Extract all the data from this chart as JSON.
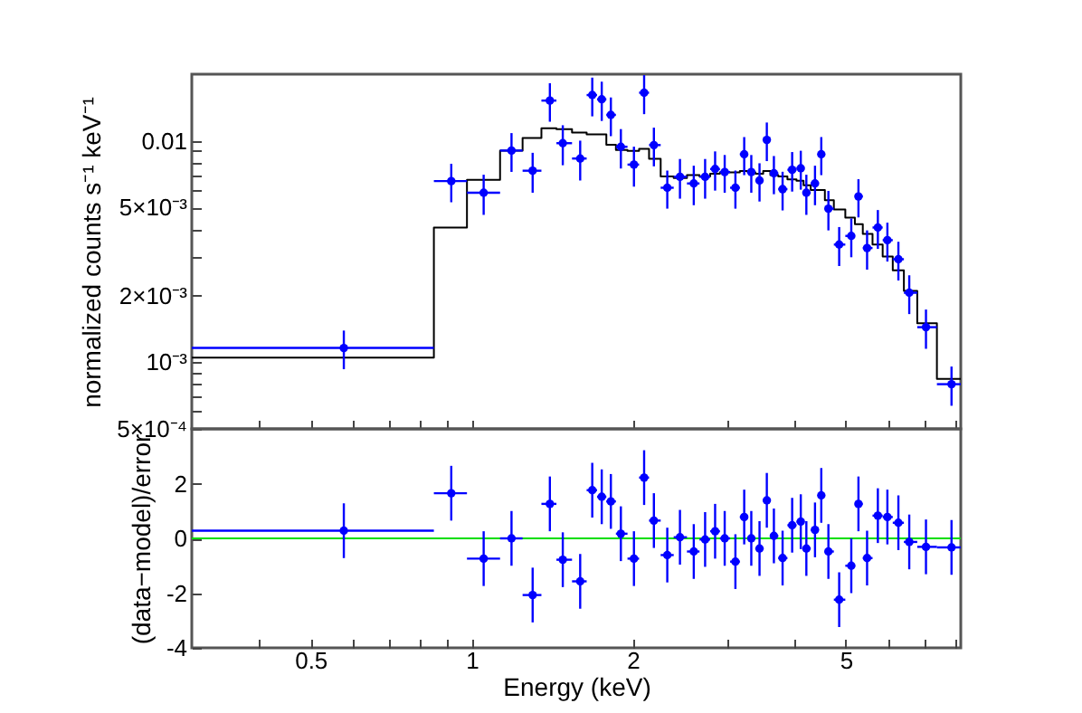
{
  "chart_data": [
    {
      "type": "scatter",
      "ylabel": "normalized counts s⁻¹ keV⁻¹",
      "log": "xy",
      "xlim": [
        0.3,
        8.2
      ],
      "ylim": [
        0.0005,
        0.02
      ],
      "xticks": [
        {
          "value": 0.4,
          "label": null
        },
        0.5,
        {
          "value": 0.6,
          "label": null
        },
        {
          "value": 0.7,
          "label": null
        },
        {
          "value": 0.8,
          "label": null
        },
        {
          "value": 0.9,
          "label": null
        },
        1,
        2,
        {
          "value": 3,
          "label": null
        },
        {
          "value": 4,
          "label": null
        },
        5,
        {
          "value": 6,
          "label": null
        },
        {
          "value": 7,
          "label": null
        },
        {
          "value": 8,
          "label": null
        }
      ],
      "yticks": [
        {
          "value": 0.0005,
          "label": "5×10⁻⁴"
        },
        {
          "value": 0.0006,
          "label": null
        },
        {
          "value": 0.0007,
          "label": null
        },
        {
          "value": 0.0008,
          "label": null
        },
        {
          "value": 0.0009,
          "label": null
        },
        {
          "value": 0.001,
          "label": "10⁻³"
        },
        {
          "value": 0.002,
          "label": "2×10⁻³"
        },
        {
          "value": 0.003,
          "label": null
        },
        {
          "value": 0.004,
          "label": null
        },
        {
          "value": 0.005,
          "label": "5×10⁻³"
        },
        {
          "value": 0.006,
          "label": null
        },
        {
          "value": 0.007,
          "label": null
        },
        {
          "value": 0.008,
          "label": null
        },
        {
          "value": 0.009,
          "label": null
        },
        0.01
      ],
      "tick_labels": "y",
      "series": [
        {
          "type": "step",
          "color": "#000000",
          "x": [
            0.3,
            0.85,
            0.98,
            1.13,
            1.245,
            1.35,
            1.44,
            1.54,
            1.64,
            1.715,
            1.785,
            1.86,
            1.955,
            2.055,
            2.145,
            2.255,
            2.385,
            2.525,
            2.665,
            2.79,
            2.91,
            3.04,
            3.17,
            3.28,
            3.39,
            3.505,
            3.615,
            3.74,
            3.89,
            4.045,
            4.17,
            4.3,
            4.44,
            4.57,
            4.75,
            4.99,
            5.2,
            5.38,
            5.61,
            5.86,
            6.12,
            6.42,
            6.8,
            7.4,
            8.2
          ],
          "values": [
            0.00105,
            0.00406,
            0.00666,
            0.00904,
            0.0103,
            0.0114,
            0.0113,
            0.0109,
            0.0107,
            0.0107,
            0.0096,
            0.0091,
            0.009,
            0.0092,
            0.0083,
            0.0069,
            0.0068,
            0.007,
            0.0069,
            0.0071,
            0.0072,
            0.0072,
            0.0073,
            0.0072,
            0.0071,
            0.0073,
            0.007,
            0.0069,
            0.0067,
            0.0066,
            0.0063,
            0.006,
            0.006,
            0.0054,
            0.0049,
            0.0045,
            0.0042,
            0.0038,
            0.0034,
            0.003,
            0.0026,
            0.0021,
            0.0015,
            0.00084,
            0.00084
          ]
        },
        {
          "color": "#0000ff",
          "marker": "circle",
          "x": [
            0.577,
            0.916,
            1.053,
            1.187,
            1.3,
            1.4,
            1.48,
            1.595,
            1.68,
            1.75,
            1.82,
            1.9,
            2.01,
            2.1,
            2.19,
            2.32,
            2.45,
            2.6,
            2.73,
            2.85,
            2.97,
            3.11,
            3.23,
            3.33,
            3.45,
            3.56,
            3.67,
            3.81,
            3.97,
            4.12,
            4.22,
            4.38,
            4.5,
            4.64,
            4.86,
            5.12,
            5.28,
            5.48,
            5.74,
            5.98,
            6.27,
            6.57,
            7.06,
            7.88
          ],
          "values": [
            0.00116,
            0.00658,
            0.00583,
            0.00904,
            0.00733,
            0.0152,
            0.00976,
            0.00832,
            0.0161,
            0.0154,
            0.0131,
            0.0094,
            0.00781,
            0.0165,
            0.00957,
            0.00614,
            0.00688,
            0.00642,
            0.00688,
            0.00746,
            0.00723,
            0.00614,
            0.0087,
            0.00723,
            0.00662,
            0.0101,
            0.00714,
            0.00605,
            0.0074,
            0.00752,
            0.00583,
            0.00642,
            0.0087,
            0.00494,
            0.0034,
            0.00372,
            0.00561,
            0.00328,
            0.00406,
            0.00356,
            0.00292,
            0.00206,
            0.00144,
            0.000796
          ],
          "errors": [
            0.00023,
            0.0013,
            0.0012,
            0.0018,
            0.0015,
            0.003,
            0.002,
            0.0017,
            0.0032,
            0.0031,
            0.0026,
            0.0019,
            0.0016,
            0.0033,
            0.0019,
            0.0012,
            0.0014,
            0.0013,
            0.0014,
            0.0015,
            0.0014,
            0.0012,
            0.0017,
            0.0014,
            0.0013,
            0.002,
            0.0014,
            0.0012,
            0.0015,
            0.0015,
            0.0012,
            0.0013,
            0.0017,
            0.001,
            0.00068,
            0.00074,
            0.0011,
            0.00066,
            0.00081,
            0.00071,
            0.00058,
            0.00041,
            0.00029,
            0.00016
          ],
          "xerrors": [
            [
              0.3,
              0.85
            ],
            [
              0.85,
              0.98
            ],
            [
              0.98,
              1.13
            ],
            [
              1.13,
              1.245
            ],
            [
              1.245,
              1.35
            ],
            [
              1.35,
              1.44
            ],
            [
              1.44,
              1.54
            ],
            [
              1.54,
              1.64
            ],
            [
              1.64,
              1.715
            ],
            [
              1.715,
              1.785
            ],
            [
              1.785,
              1.86
            ],
            [
              1.86,
              1.955
            ],
            [
              1.955,
              2.055
            ],
            [
              2.055,
              2.145
            ],
            [
              2.145,
              2.255
            ],
            [
              2.255,
              2.385
            ],
            [
              2.385,
              2.525
            ],
            [
              2.525,
              2.665
            ],
            [
              2.665,
              2.79
            ],
            [
              2.79,
              2.91
            ],
            [
              2.91,
              3.04
            ],
            [
              3.04,
              3.17
            ],
            [
              3.17,
              3.28
            ],
            [
              3.28,
              3.39
            ],
            [
              3.39,
              3.505
            ],
            [
              3.505,
              3.615
            ],
            [
              3.615,
              3.74
            ],
            [
              3.74,
              3.89
            ],
            [
              3.89,
              4.045
            ],
            [
              4.045,
              4.17
            ],
            [
              4.17,
              4.3
            ],
            [
              4.3,
              4.44
            ],
            [
              4.44,
              4.57
            ],
            [
              4.57,
              4.75
            ],
            [
              4.75,
              4.99
            ],
            [
              4.99,
              5.2
            ],
            [
              5.2,
              5.38
            ],
            [
              5.38,
              5.61
            ],
            [
              5.61,
              5.86
            ],
            [
              5.86,
              6.12
            ],
            [
              6.12,
              6.42
            ],
            [
              6.42,
              6.8
            ],
            [
              6.8,
              7.4
            ],
            [
              7.4,
              8.2
            ]
          ]
        }
      ]
    },
    {
      "type": "scatter",
      "xlabel": "Energy (keV)",
      "ylabel": "(data−model)/error",
      "log": "x",
      "xlim": [
        0.3,
        8.2
      ],
      "ylim": [
        -4,
        4
      ],
      "xticks": [
        {
          "value": 0.4,
          "label": null
        },
        0.5,
        {
          "value": 0.6,
          "label": null
        },
        {
          "value": 0.7,
          "label": null
        },
        {
          "value": 0.8,
          "label": null
        },
        {
          "value": 0.9,
          "label": null
        },
        1,
        2,
        {
          "value": 3,
          "label": null
        },
        {
          "value": 4,
          "label": null
        },
        5,
        {
          "value": 6,
          "label": null
        },
        {
          "value": 7,
          "label": null
        },
        {
          "value": 8,
          "label": null
        }
      ],
      "yticks": [
        -4,
        -2,
        0,
        2
      ],
      "marker": "circle",
      "ref_lines": [
        {
          "axis": "y",
          "value": 0,
          "color": "#00dd00"
        }
      ],
      "series": [
        {
          "color": "#0000ff",
          "x": [
            0.577,
            0.916,
            1.053,
            1.187,
            1.3,
            1.4,
            1.48,
            1.595,
            1.68,
            1.75,
            1.82,
            1.9,
            2.01,
            2.1,
            2.19,
            2.32,
            2.45,
            2.6,
            2.73,
            2.85,
            2.97,
            3.11,
            3.23,
            3.33,
            3.45,
            3.56,
            3.67,
            3.81,
            3.97,
            4.12,
            4.22,
            4.38,
            4.5,
            4.64,
            4.86,
            5.12,
            5.28,
            5.48,
            5.74,
            5.98,
            6.27,
            6.57,
            7.06,
            7.88
          ],
          "values": [
            0.28,
            1.65,
            -0.74,
            0,
            -2.07,
            1.26,
            -0.78,
            -1.57,
            1.76,
            1.52,
            1.35,
            0.17,
            -0.74,
            2.22,
            0.65,
            -0.61,
            0.04,
            -0.48,
            -0.04,
            0.26,
            0,
            -0.85,
            0.78,
            0,
            -0.37,
            1.39,
            0.09,
            -0.72,
            0.48,
            0.61,
            -0.37,
            0.31,
            1.57,
            -0.48,
            -2.24,
            -1,
            1.26,
            -0.72,
            0.83,
            0.78,
            0.57,
            -0.13,
            -0.31,
            -0.33
          ],
          "errors": [
            1,
            1,
            1,
            1,
            1,
            1,
            1,
            1,
            1,
            1,
            1,
            1,
            1,
            1,
            1,
            1,
            1,
            1,
            1,
            1,
            1,
            1,
            1,
            1,
            1,
            1,
            1,
            1,
            1,
            1,
            1,
            1,
            1,
            1,
            1,
            1,
            1,
            1,
            1,
            1,
            1,
            1,
            1,
            1
          ],
          "xerrors": [
            [
              0.3,
              0.85
            ],
            [
              0.85,
              0.98
            ],
            [
              0.98,
              1.13
            ],
            [
              1.13,
              1.245
            ],
            [
              1.245,
              1.35
            ],
            [
              1.35,
              1.44
            ],
            [
              1.44,
              1.54
            ],
            [
              1.54,
              1.64
            ],
            [
              1.64,
              1.715
            ],
            [
              1.715,
              1.785
            ],
            [
              1.785,
              1.86
            ],
            [
              1.86,
              1.955
            ],
            [
              1.955,
              2.055
            ],
            [
              2.055,
              2.145
            ],
            [
              2.145,
              2.255
            ],
            [
              2.255,
              2.385
            ],
            [
              2.385,
              2.525
            ],
            [
              2.525,
              2.665
            ],
            [
              2.665,
              2.79
            ],
            [
              2.79,
              2.91
            ],
            [
              2.91,
              3.04
            ],
            [
              3.04,
              3.17
            ],
            [
              3.17,
              3.28
            ],
            [
              3.28,
              3.39
            ],
            [
              3.39,
              3.505
            ],
            [
              3.505,
              3.615
            ],
            [
              3.615,
              3.74
            ],
            [
              3.74,
              3.89
            ],
            [
              3.89,
              4.045
            ],
            [
              4.045,
              4.17
            ],
            [
              4.17,
              4.3
            ],
            [
              4.3,
              4.44
            ],
            [
              4.44,
              4.57
            ],
            [
              4.57,
              4.75
            ],
            [
              4.75,
              4.99
            ],
            [
              4.99,
              5.2
            ],
            [
              5.2,
              5.38
            ],
            [
              5.38,
              5.61
            ],
            [
              5.61,
              5.86
            ],
            [
              5.86,
              6.12
            ],
            [
              6.12,
              6.42
            ],
            [
              6.42,
              6.8
            ],
            [
              6.8,
              7.4
            ],
            [
              7.4,
              8.2
            ]
          ]
        }
      ]
    }
  ]
}
